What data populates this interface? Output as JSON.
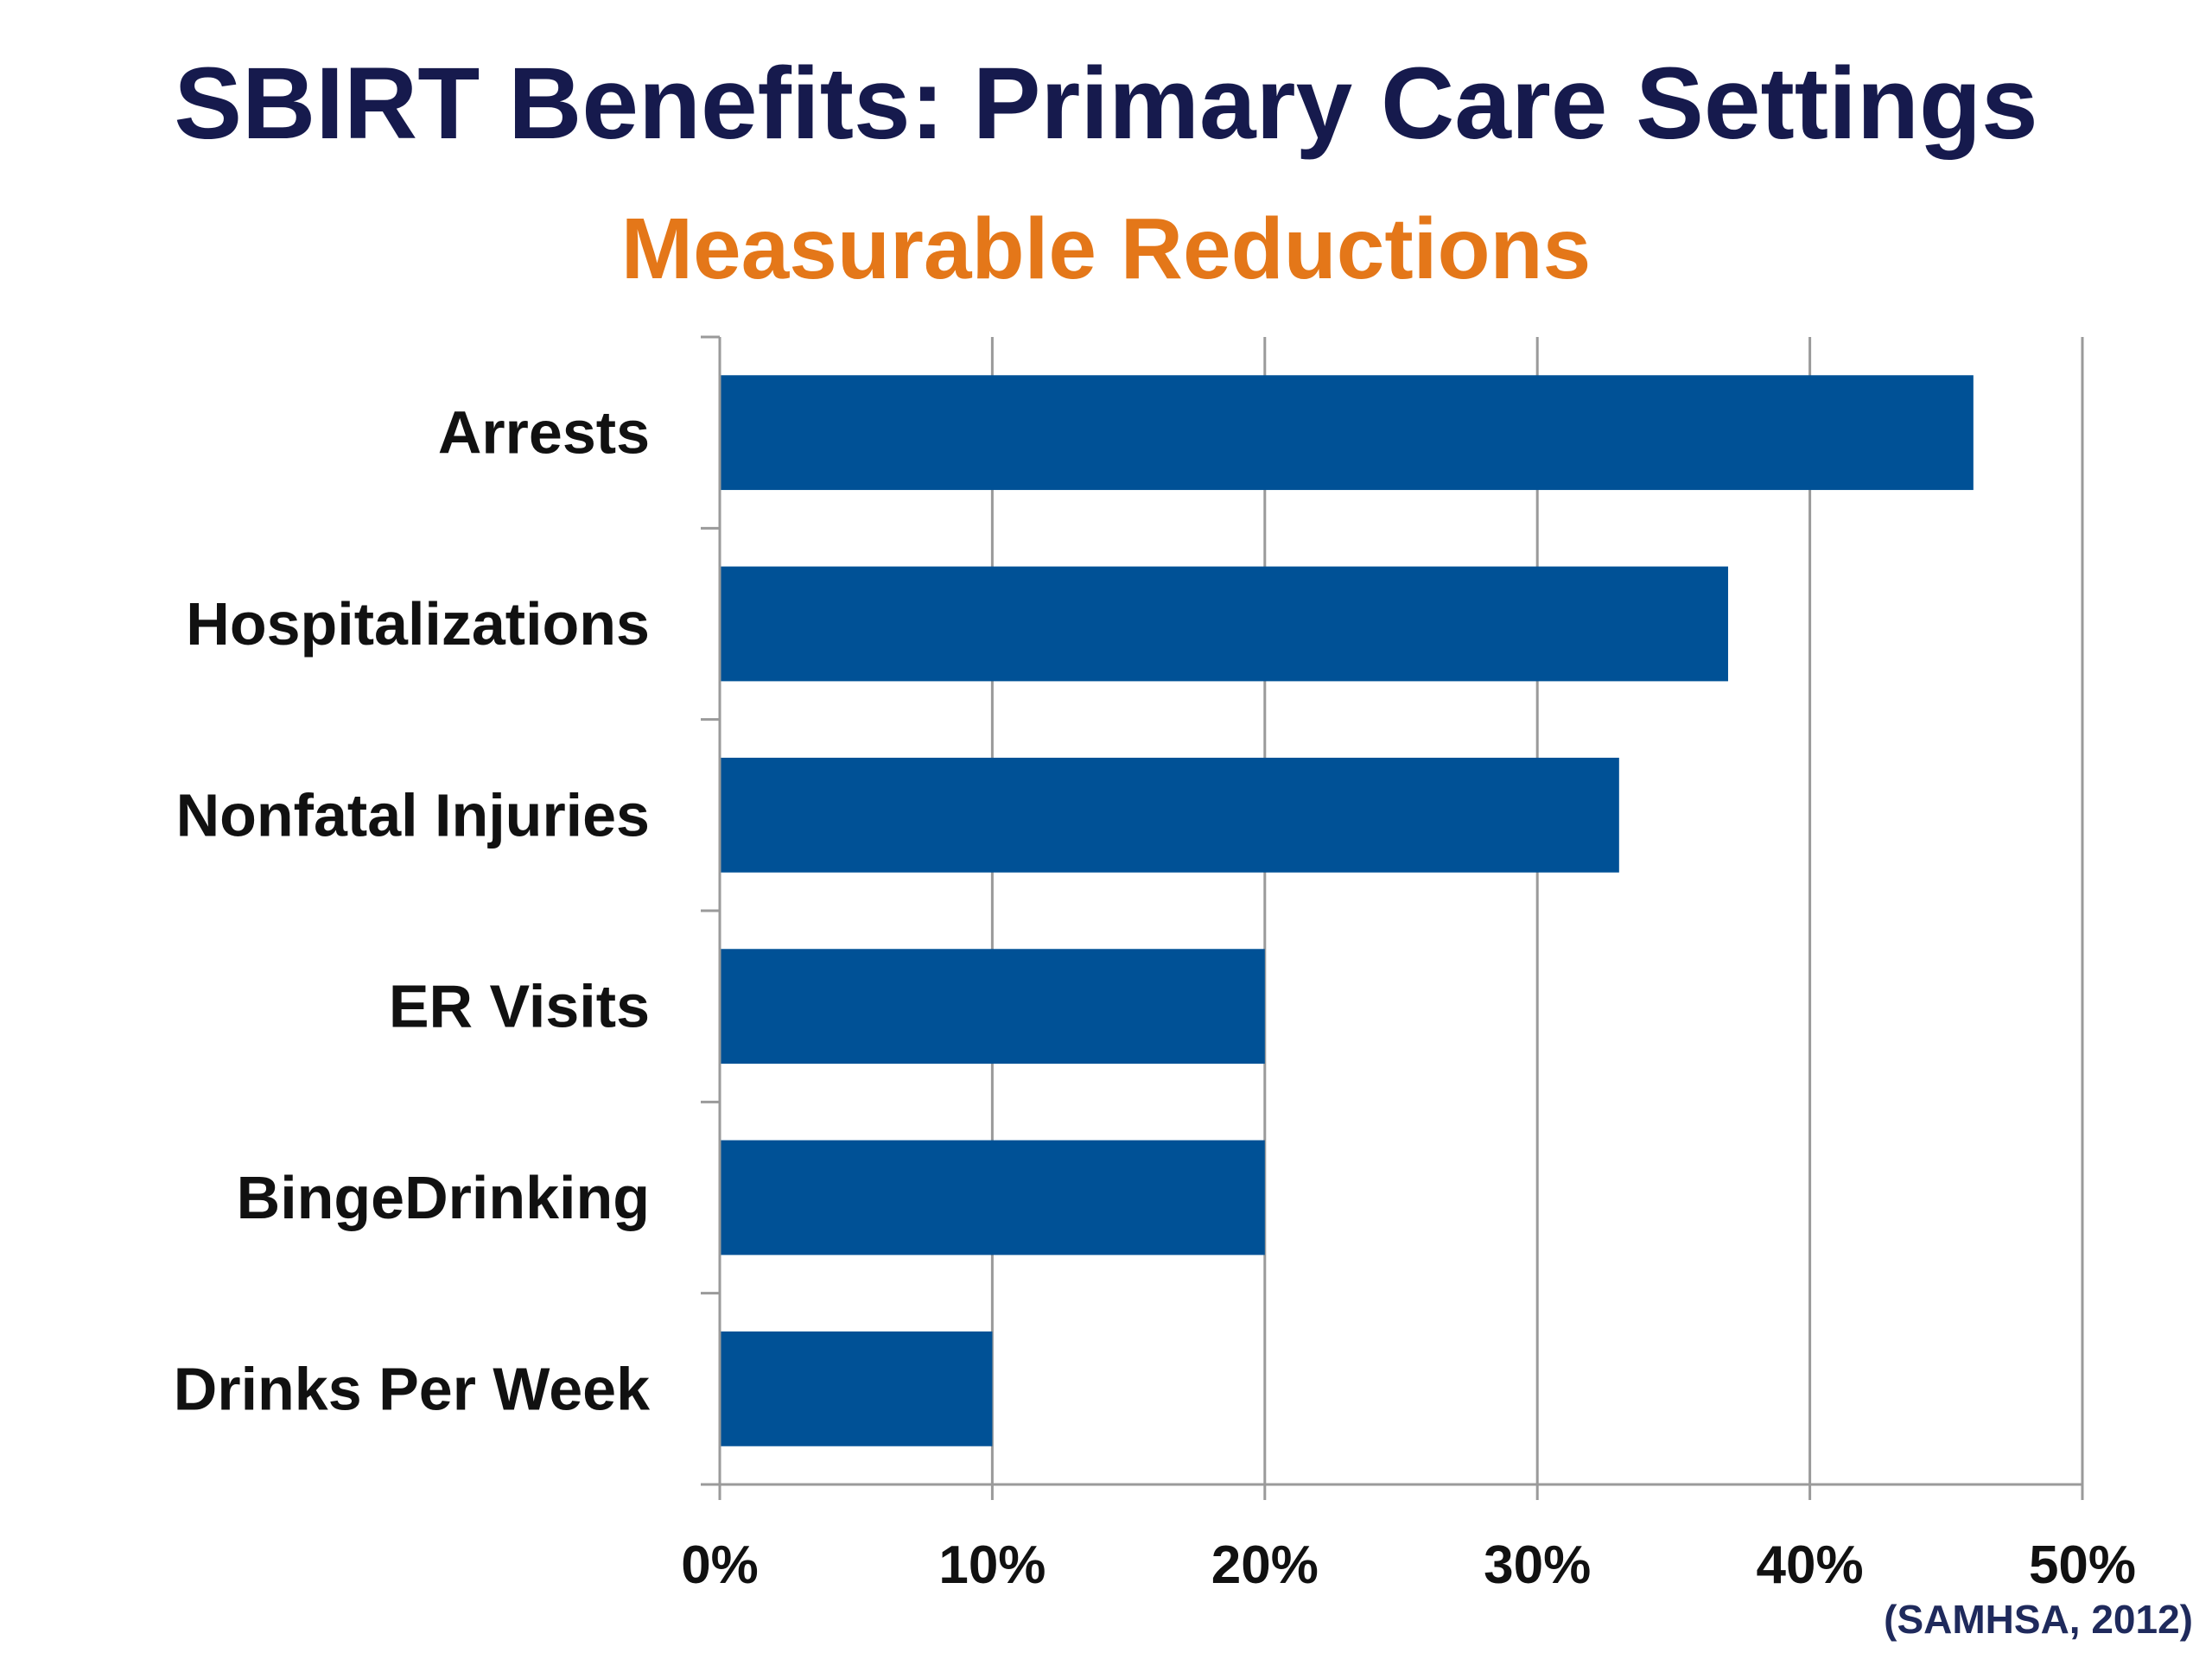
{
  "colors": {
    "title": "#161a4d",
    "subtitle": "#e47719",
    "bar": "#005196",
    "grid": "#9a9a9a",
    "text": "#111111",
    "source": "#1f2a5c"
  },
  "chart_data": {
    "type": "bar",
    "orientation": "horizontal",
    "title": "SBIRT Benefits: Primary Care Settings",
    "subtitle": "Measurable Reductions",
    "categories": [
      "Arrests",
      "Hospitalizations",
      "Nonfatal Injuries",
      "ER Visits",
      "BingeDrinking",
      "Drinks Per Week"
    ],
    "values": [
      46,
      37,
      33,
      20,
      20,
      10
    ],
    "x_ticks": [
      "0%",
      "10%",
      "20%",
      "30%",
      "40%",
      "50%"
    ],
    "xlim": [
      0,
      50
    ],
    "xlabel": "",
    "ylabel": "",
    "grid": true,
    "source": "(SAMHSA, 2012)"
  }
}
